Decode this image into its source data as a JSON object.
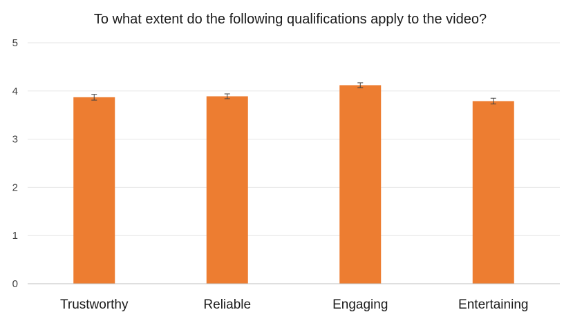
{
  "chart_data": {
    "type": "bar",
    "title": "To what extent do the following qualifications apply to the video?",
    "xlabel": "",
    "ylabel": "",
    "categories": [
      "Trustworthy",
      "Reliable",
      "Engaging",
      "Entertaining"
    ],
    "values": [
      3.87,
      3.89,
      4.12,
      3.79
    ],
    "error": [
      0.06,
      0.05,
      0.05,
      0.06
    ],
    "ylim": [
      0,
      5
    ],
    "yticks": [
      "0",
      "1",
      "2",
      "3",
      "4",
      "5"
    ],
    "grid": true,
    "legend": "none",
    "bar_color": "#ED7D31"
  }
}
